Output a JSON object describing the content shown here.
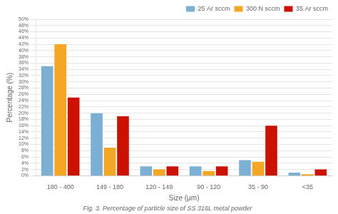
{
  "chart_data": {
    "type": "bar",
    "caption": "Fig. 3. Percentage of particle size of SS 316L metal powder",
    "x_label": "Size (μm)",
    "y_label": "Percentage (%)",
    "categories": [
      "180 - 400",
      "149 - 180",
      "120 - 149",
      "90 - 120",
      "35 - 90",
      "<35"
    ],
    "series": [
      {
        "name": "25 Ar sccm",
        "color": "#7BAFD4",
        "values": [
          35,
          20,
          3,
          3,
          5,
          1
        ]
      },
      {
        "name": "300 N sccm",
        "color": "#F5A623",
        "values": [
          42,
          9,
          2,
          1.5,
          4.5,
          0.5
        ]
      },
      {
        "name": "35 Ar sccm",
        "color": "#CC1100",
        "values": [
          25,
          19,
          3,
          3,
          16,
          2
        ]
      }
    ],
    "ylim": [
      0,
      50
    ],
    "yticks": [
      {
        "value": 0,
        "label": "0%"
      },
      {
        "value": 2,
        "label": "2%"
      },
      {
        "value": 4,
        "label": "4%"
      },
      {
        "value": 6,
        "label": "6%"
      },
      {
        "value": 8,
        "label": "8%"
      },
      {
        "value": 10,
        "label": "10%"
      },
      {
        "value": 12,
        "label": "12%"
      },
      {
        "value": 14,
        "label": "14%"
      },
      {
        "value": 16,
        "label": "16%"
      },
      {
        "value": 18,
        "label": "18%"
      },
      {
        "value": 20,
        "label": "20%"
      },
      {
        "value": 22,
        "label": "22%"
      },
      {
        "value": 24,
        "label": "24%"
      },
      {
        "value": 26,
        "label": "26%"
      },
      {
        "value": 28,
        "label": "28%"
      },
      {
        "value": 30,
        "label": "30%"
      },
      {
        "value": 32,
        "label": "32%"
      },
      {
        "value": 34,
        "label": "34%"
      },
      {
        "value": 36,
        "label": "36%"
      },
      {
        "value": 38,
        "label": "38%"
      },
      {
        "value": 40,
        "label": "40%"
      },
      {
        "value": 42,
        "label": "42%"
      },
      {
        "value": 44,
        "label": "44%"
      },
      {
        "value": 46,
        "label": "46%"
      },
      {
        "value": 48,
        "label": "48%"
      },
      {
        "value": 50,
        "label": "50%"
      }
    ],
    "grid": true,
    "legend": "upper right"
  }
}
